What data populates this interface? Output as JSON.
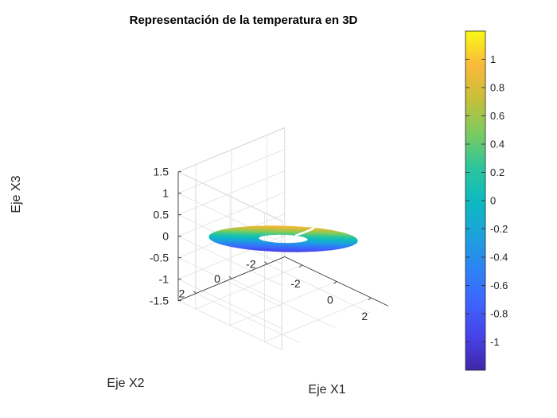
{
  "chart_data": {
    "type": "surface3d",
    "title": "Representación de la temperatura en 3D",
    "xlabel": "Eje X1",
    "ylabel": "Eje X2",
    "zlabel": "Eje X3",
    "x_ticks": [
      "-2",
      "0",
      "2"
    ],
    "y_ticks": [
      "-2",
      "0",
      "2"
    ],
    "z_ticks": [
      "-1.5",
      "-1",
      "-0.5",
      "0",
      "0.5",
      "1",
      "1.5"
    ],
    "xlim": [
      -3,
      3
    ],
    "ylim": [
      -3,
      3
    ],
    "zlim": [
      -1.5,
      1.5
    ],
    "grid": true,
    "colormap": "parula",
    "colorbar": {
      "position": "right",
      "range": [
        -1.2,
        1.2
      ],
      "ticks": [
        "-1",
        "-0.8",
        "-0.6",
        "-0.4",
        "-0.2",
        "0",
        "0.2",
        "0.4",
        "0.6",
        "0.8",
        "1"
      ]
    },
    "surface": {
      "shape": "annulus in tilted plane",
      "inner_radius": 1,
      "outer_radius": 3,
      "plane_normal": [
        -0.7,
        -0.7,
        1
      ],
      "color_variable": "temperature (follows height X3)"
    },
    "curve": {
      "color": "#ffffff",
      "description": "seam line along the ring"
    }
  }
}
